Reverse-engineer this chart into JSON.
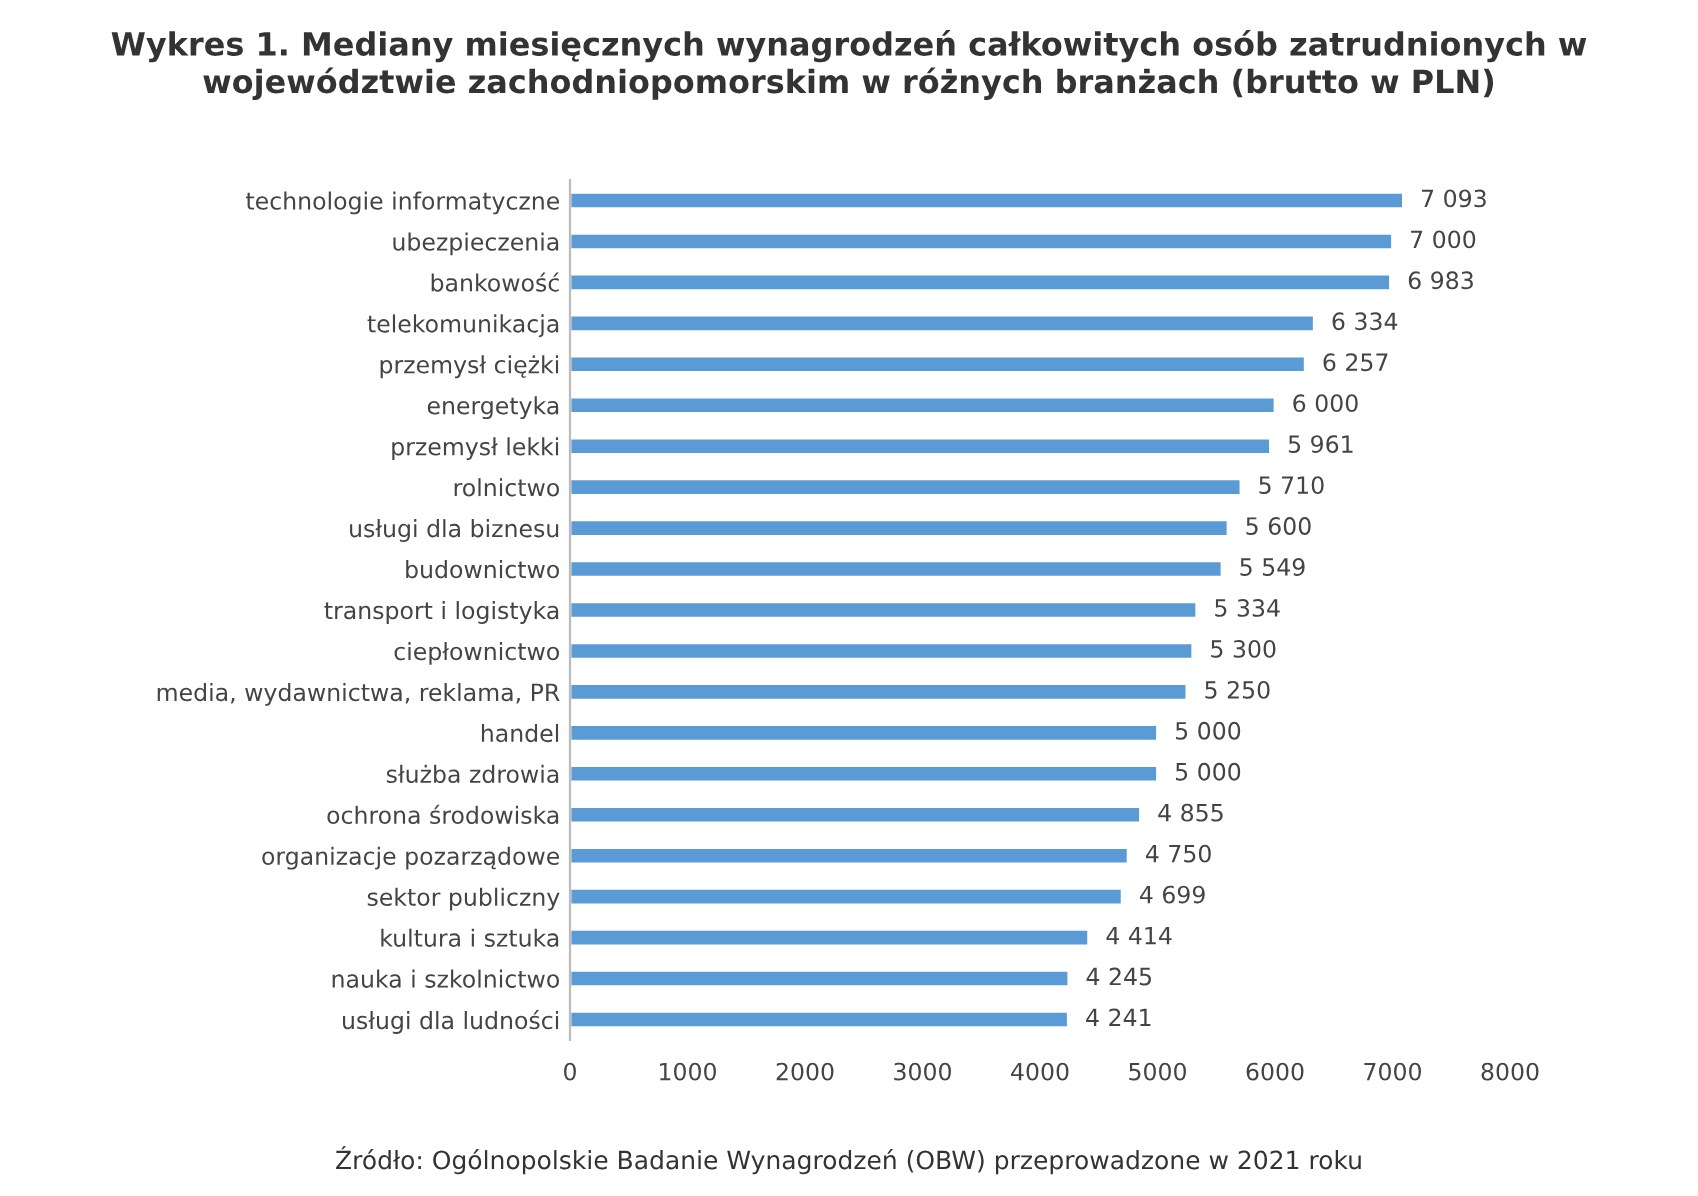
{
  "chart_data": {
    "type": "bar",
    "orientation": "horizontal",
    "title": "Wykres 1. Mediany miesięcznych wynagrodzeń całkowitych osób zatrudnionych w województwie zachodniopomorskim w różnych branżach (brutto w PLN)",
    "categories": [
      "technologie informatyczne",
      "ubezpieczenia",
      "bankowość",
      "telekomunikacja",
      "przemysł ciężki",
      "energetyka",
      "przemysł lekki",
      "rolnictwo",
      "usługi dla biznesu",
      "budownictwo",
      "transport i logistyka",
      "ciepłownictwo",
      "media, wydawnictwa, reklama, PR",
      "handel",
      "służba zdrowia",
      "ochrona środowiska",
      "organizacje pozarządowe",
      "sektor publiczny",
      "kultura i sztuka",
      "nauka i szkolnictwo",
      "usługi dla ludności"
    ],
    "values": [
      7093,
      7000,
      6983,
      6334,
      6257,
      6000,
      5961,
      5710,
      5600,
      5549,
      5334,
      5300,
      5250,
      5000,
      5000,
      4855,
      4750,
      4699,
      4414,
      4245,
      4241
    ],
    "value_labels": [
      "7 093",
      "7 000",
      "6 983",
      "6 334",
      "6 257",
      "6 000",
      "5 961",
      "5 710",
      "5 600",
      "5 549",
      "5 334",
      "5 300",
      "5 250",
      "5 000",
      "5 000",
      "4 855",
      "4 750",
      "4 699",
      "4 414",
      "4 245",
      "4 241"
    ],
    "color": "#5b9bd5",
    "xlim": [
      0,
      8000
    ],
    "xticks": [
      0,
      1000,
      2000,
      3000,
      4000,
      5000,
      6000,
      7000,
      8000
    ],
    "grid": false,
    "legend": false,
    "annotations": [
      "Źródło: Ogólnopolskie Badanie Wynagrodzeń (OBW) przeprowadzone w 2021 roku"
    ]
  }
}
